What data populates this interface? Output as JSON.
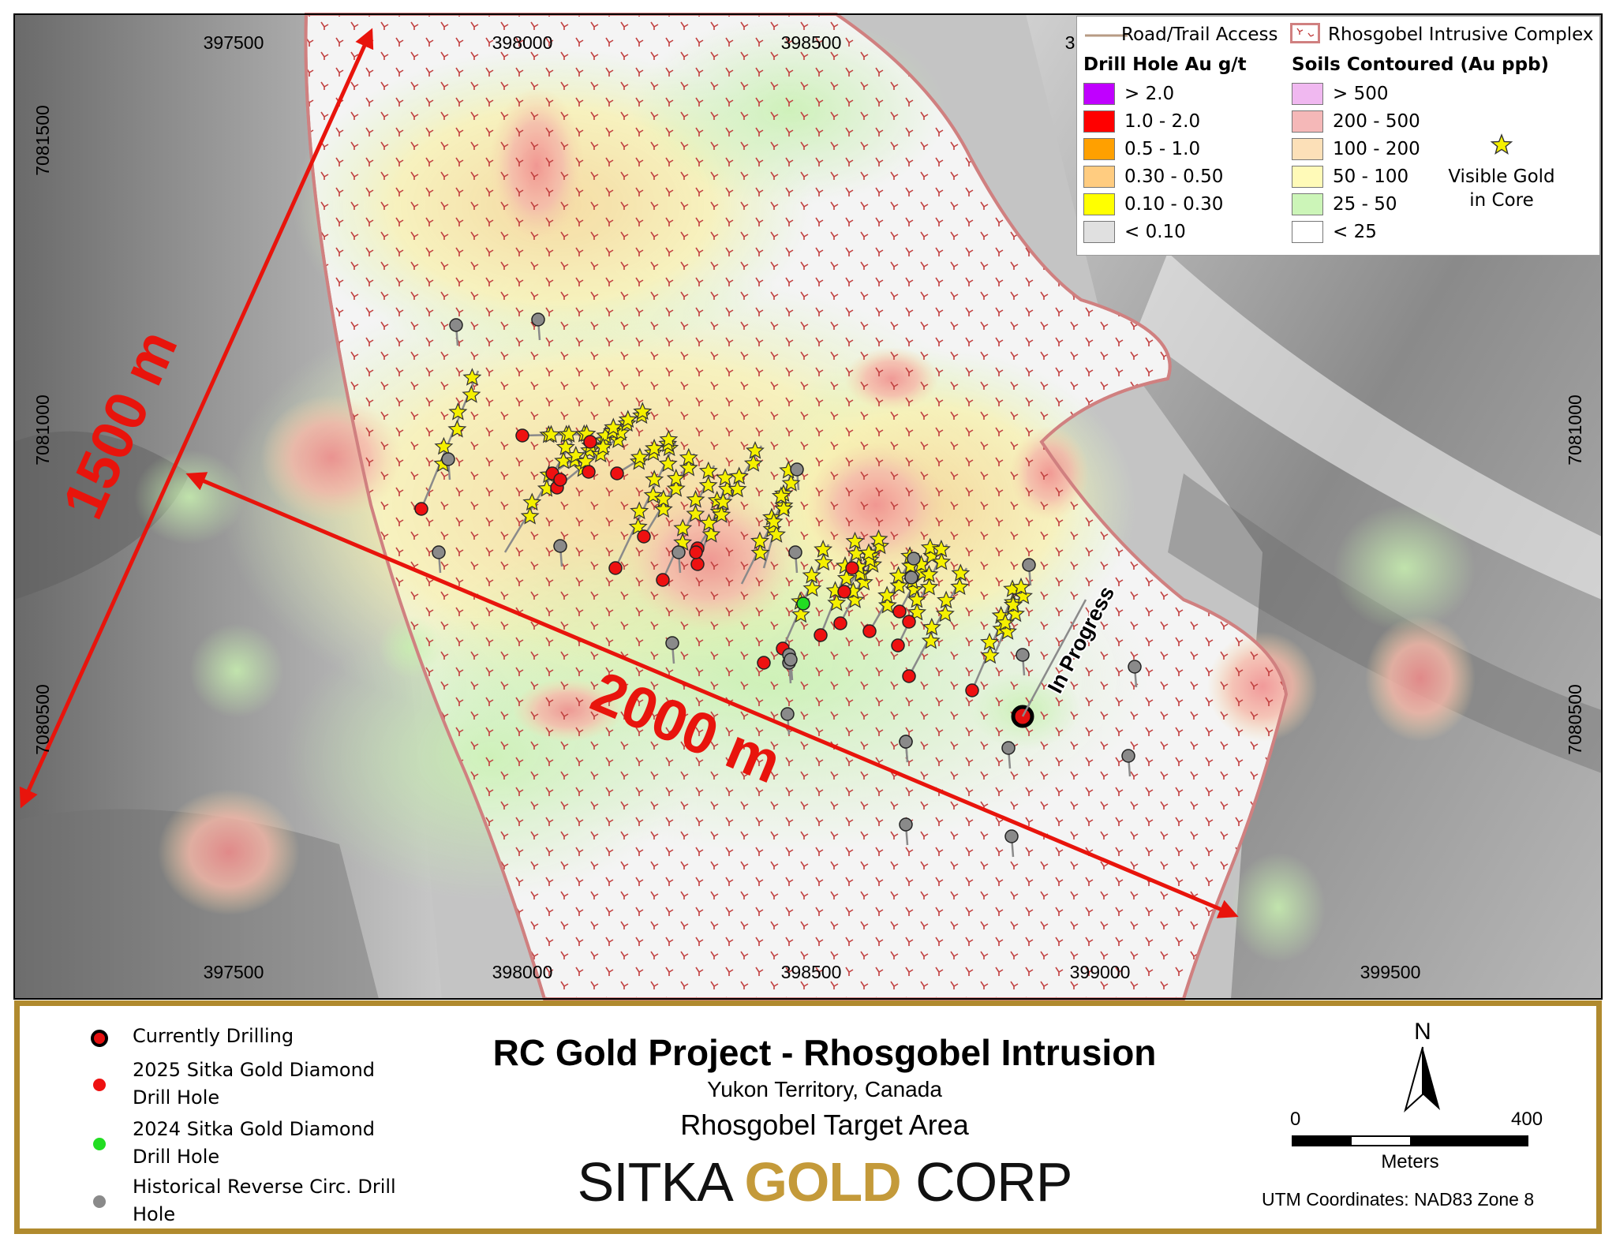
{
  "map": {
    "x_ticks": [
      "397500",
      "398000",
      "398500",
      "399000",
      "399500"
    ],
    "y_ticks": [
      "7081500",
      "7081000",
      "7080500"
    ],
    "top_x_ticks": [
      "397500",
      "398000",
      "398500",
      "3"
    ],
    "distance_label_1": "1500 m",
    "distance_label_2": "2000 m",
    "in_progress_label": "In Progress"
  },
  "legend": {
    "road": "Road/Trail Access",
    "intrusive": "Rhosgobel Intrusive Complex",
    "drill_heading": "Drill Hole Au g/t",
    "soil_heading": "Soils Contoured (Au ppb)",
    "drill_classes": [
      {
        "label": "> 2.0",
        "color": "#c000ff"
      },
      {
        "label": "1.0 - 2.0",
        "color": "#ff0000"
      },
      {
        "label": "0.5 - 1.0",
        "color": "#ffa000"
      },
      {
        "label": "0.30 - 0.50",
        "color": "#ffcc80"
      },
      {
        "label": "0.10 - 0.30",
        "color": "#ffff00"
      },
      {
        "label": "< 0.10",
        "color": "#e0e0e0"
      }
    ],
    "soil_classes": [
      {
        "label": "> 500",
        "color": "#f0b8f0"
      },
      {
        "label": "200 - 500",
        "color": "#f5b8b8"
      },
      {
        "label": "100 - 200",
        "color": "#fce0b8"
      },
      {
        "label": "50 - 100",
        "color": "#fffab8"
      },
      {
        "label": "25 - 50",
        "color": "#ccf5b8"
      },
      {
        "label": "< 25",
        "color": "#ffffff"
      }
    ],
    "visible_gold_line1": "Visible Gold",
    "visible_gold_line2": "in Core"
  },
  "title_block": {
    "currently_drilling": "Currently Drilling",
    "sitka_2025_line1": "2025 Sitka Gold Diamond",
    "sitka_2025_line2": "Drill Hole",
    "sitka_2024_line1": "2024 Sitka Gold Diamond",
    "sitka_2024_line2": "Drill Hole",
    "historical_line1": "Historical Reverse Circ. Drill",
    "historical_line2": "Hole",
    "title": "RC Gold Project - Rhosgobel Intrusion",
    "subtitle": "Yukon Territory, Canada",
    "target_area": "Rhosgobel Target Area",
    "logo_part1": "SITKA",
    "logo_part2": "GOLD",
    "logo_part3": "CORP",
    "north_label": "N",
    "scale_start": "0",
    "scale_end": "400",
    "scale_units": "Meters",
    "coord_system": "UTM Coordinates: NAD83 Zone 8"
  },
  "colors": {
    "frame": "#b08a2e",
    "arrow": "#e8140c",
    "intrusive_outline": "#d08080",
    "star": "#f5f000"
  }
}
